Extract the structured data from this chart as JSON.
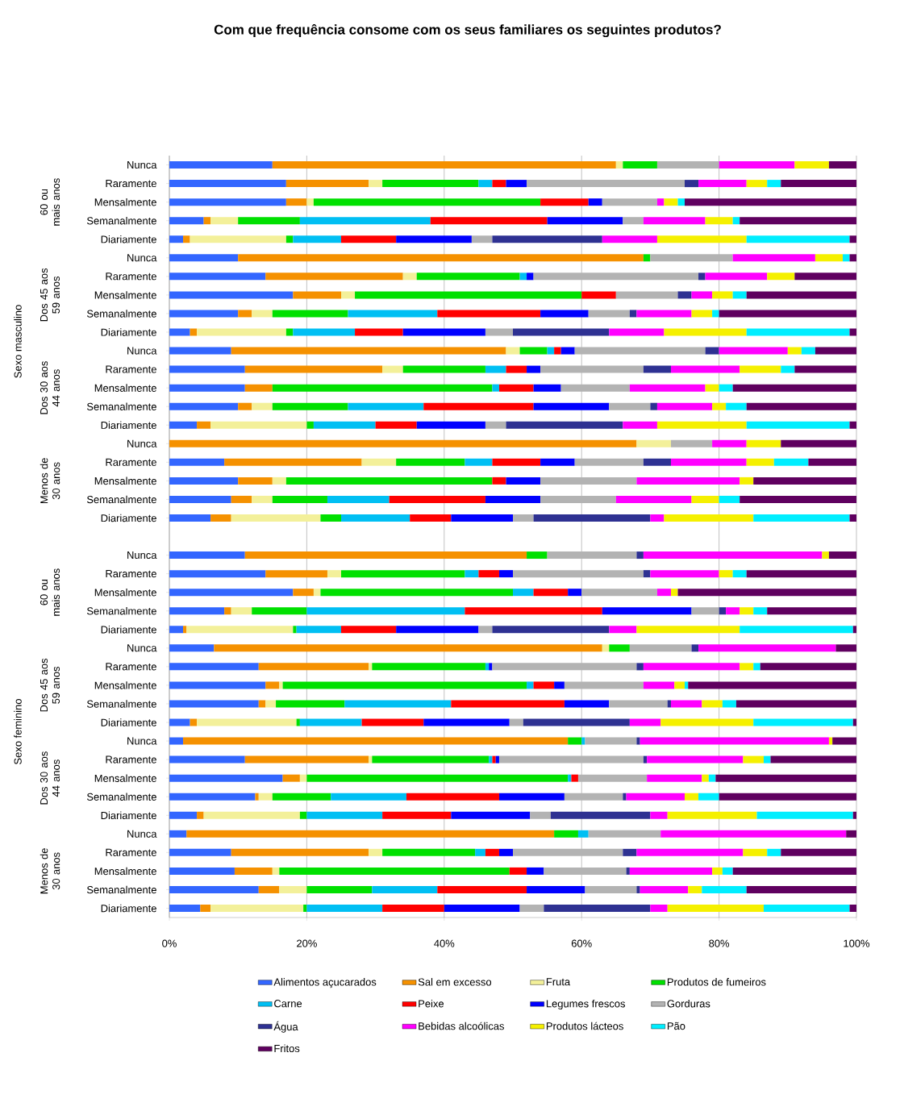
{
  "chart_data": {
    "type": "bar",
    "orientation": "horizontal",
    "stacked": true,
    "title": "Com que frequência consome com os seus familiares os seguintes produtos?",
    "categories": [
      "Nunca",
      "Raramente",
      "Mensalmente",
      "Semanalmente",
      "Diariamente",
      "Nunca",
      "Raramente",
      "Mensalmente",
      "Semanalmente",
      "Diariamente",
      "Nunca",
      "Raramente",
      "Mensalmente",
      "Semanalmente",
      "Diariamente",
      "Nunca",
      "Raramente",
      "Mensalmente",
      "Semanalmente",
      "Diariamente",
      null,
      "Nunca",
      "Raramente",
      "Mensalmente",
      "Semanalmente",
      "Diariamente",
      "Nunca",
      "Raramente",
      "Mensalmente",
      "Semanalmente",
      "Diariamente",
      "Nunca",
      "Raramente",
      "Mensalmente",
      "Semanalmente",
      "Diariamente",
      "Nunca",
      "Raramente",
      "Mensalmente",
      "Semanalmente",
      "Diariamente"
    ],
    "annotations": [
      "60 ou mais anos",
      "Dos 45 aos 59 anos",
      "Dos 30 aos 44 anos",
      "Menos de 30 anos",
      "Sexo masculino",
      "60 ou mais anos",
      "Dos 45 aos 59 anos",
      "Dos 30 aos 44 anos",
      "Menos de 30 anos",
      "Sexo feminino"
    ],
    "series": [
      {
        "name": "Alimentos açucarados",
        "color": "#3366ff",
        "values": [
          15,
          17,
          17,
          5,
          2,
          10,
          14,
          18,
          10,
          3,
          9,
          11,
          11,
          10,
          4,
          0,
          8,
          10,
          9,
          6,
          null,
          11,
          14,
          18,
          8,
          2,
          6.5,
          13,
          14,
          13,
          3,
          2,
          11,
          16.5,
          12.5,
          4,
          2.5,
          9,
          9.5,
          13,
          4.5
        ]
      },
      {
        "name": "Sal em excesso",
        "color": "#f59100",
        "values": [
          50,
          12,
          3,
          1,
          1,
          59,
          20,
          7,
          2,
          1,
          40,
          20,
          4,
          2,
          2,
          68,
          20,
          5,
          3,
          3,
          null,
          41,
          9,
          3,
          1,
          0.5,
          56.5,
          16,
          2,
          1,
          1,
          56,
          18,
          2.5,
          0.5,
          1,
          53.5,
          20,
          5.5,
          3,
          1.5
        ]
      },
      {
        "name": "Fruta",
        "color": "#f3f09a",
        "values": [
          1,
          2,
          1,
          4,
          14,
          0,
          2,
          2,
          3,
          13,
          2,
          3,
          0,
          3,
          14,
          5,
          5,
          2,
          3,
          13,
          null,
          0,
          2,
          1,
          3,
          15.5,
          1,
          0.5,
          0.5,
          1.5,
          14.5,
          0,
          0.5,
          1,
          2,
          14,
          0,
          2,
          1,
          4,
          13.5
        ]
      },
      {
        "name": "Produtos de fumeiros",
        "color": "#00e000",
        "values": [
          5,
          14,
          33,
          9,
          1,
          1,
          15,
          33,
          11,
          1,
          4,
          12,
          32,
          11,
          1,
          0,
          10,
          30,
          8,
          3,
          null,
          3,
          18,
          28,
          8,
          0.5,
          3,
          16.5,
          35.5,
          10,
          0.5,
          2,
          17,
          38,
          8.5,
          1,
          3.5,
          13.5,
          33.5,
          9.5,
          0.5
        ]
      },
      {
        "name": "Carne",
        "color": "#00bff3",
        "values": [
          0,
          2,
          0,
          19,
          7,
          0,
          1,
          0,
          13,
          9,
          1,
          3,
          1,
          11,
          9,
          0,
          4,
          0,
          9,
          10,
          null,
          0,
          2,
          3,
          23,
          6.5,
          0,
          0.5,
          1,
          15.5,
          9,
          0.5,
          0.5,
          0.5,
          11,
          11,
          1.5,
          1.5,
          0,
          9.5,
          11
        ]
      },
      {
        "name": "Peixe",
        "color": "#ff0000",
        "values": [
          0,
          2,
          7,
          17,
          8,
          0,
          0,
          5,
          15,
          7,
          1,
          3,
          5,
          16,
          6,
          0,
          7,
          2,
          14,
          6,
          null,
          0,
          3,
          5,
          20,
          8,
          0,
          0,
          3,
          16.5,
          9,
          0,
          0.5,
          1,
          13.5,
          10,
          0,
          2,
          2.5,
          13,
          9
        ]
      },
      {
        "name": "Legumes frescos",
        "color": "#0000ff",
        "values": [
          0,
          3,
          2,
          11,
          11,
          0,
          1,
          0,
          7,
          12,
          2,
          2,
          4,
          11,
          10,
          0,
          5,
          5,
          8,
          9,
          null,
          0,
          2,
          2,
          13,
          12,
          0,
          0.5,
          1.5,
          6.5,
          12.5,
          0,
          0.5,
          0,
          9.5,
          11.5,
          0,
          2,
          2.5,
          8.5,
          11
        ]
      },
      {
        "name": "Gorduras",
        "color": "#b3b3b3",
        "values": [
          9,
          23,
          8,
          3,
          3,
          12,
          24,
          9,
          6,
          4,
          19,
          15,
          10,
          6,
          3,
          6,
          10,
          14,
          11,
          3,
          null,
          13,
          19,
          11,
          4,
          2,
          9,
          21,
          11.5,
          8.5,
          2,
          7.5,
          21,
          10,
          8.5,
          3,
          10.5,
          16,
          12,
          7.5,
          3.5
        ]
      },
      {
        "name": "Água",
        "color": "#2e3192",
        "values": [
          0,
          2,
          0,
          0,
          16,
          0,
          1,
          2,
          1,
          14,
          2,
          4,
          0,
          1,
          17,
          0,
          4,
          0,
          0,
          17,
          null,
          1,
          1,
          0,
          1,
          17,
          1,
          1,
          0,
          0.5,
          15.5,
          0.5,
          0.5,
          0,
          0.5,
          14.5,
          0,
          2,
          0.5,
          0.5,
          15.5
        ]
      },
      {
        "name": "Bebidas alcoólicas",
        "color": "#ff00ff",
        "values": [
          11,
          7,
          1,
          9,
          8,
          12,
          9,
          3,
          8,
          8,
          10,
          10,
          11,
          8,
          5,
          5,
          11,
          15,
          11,
          2,
          null,
          26,
          10,
          2,
          2,
          4,
          20,
          14,
          4.5,
          4.5,
          4.5,
          27.5,
          14,
          8,
          8.5,
          2.5,
          27,
          15.5,
          12,
          7,
          2.5
        ]
      },
      {
        "name": "Produtos lácteos",
        "color": "#f5f000",
        "values": [
          5,
          3,
          2,
          4,
          13,
          4,
          4,
          3,
          3,
          12,
          2,
          6,
          2,
          2,
          13,
          5,
          4,
          2,
          4,
          13,
          null,
          1,
          2,
          1,
          2,
          15,
          0,
          2,
          1.5,
          3,
          13.5,
          0.5,
          3,
          1,
          2,
          13,
          0,
          3.5,
          1.5,
          2,
          14
        ]
      },
      {
        "name": "Pão",
        "color": "#00eeff",
        "values": [
          0,
          2,
          1,
          1,
          15,
          1,
          0,
          2,
          1,
          15,
          2,
          2,
          2,
          3,
          15,
          0,
          5,
          0,
          3,
          14,
          null,
          0,
          2,
          0,
          2,
          16.5,
          0,
          1,
          0.5,
          2,
          14.5,
          0,
          1,
          1,
          3,
          14,
          0,
          2,
          1.5,
          6.5,
          12.5
        ]
      },
      {
        "name": "Fritos",
        "color": "#5f005f",
        "values": [
          4,
          11,
          25,
          17,
          1,
          1,
          9,
          16,
          20,
          1,
          6,
          9,
          18,
          16,
          1,
          11,
          7,
          15,
          17,
          1,
          null,
          4,
          16,
          26,
          13,
          0.5,
          3,
          14,
          24.5,
          17.5,
          0.5,
          3.5,
          12.5,
          20.5,
          20,
          0.5,
          1.5,
          11,
          18,
          16,
          1
        ]
      }
    ],
    "xlim": [
      0,
      100
    ],
    "xticks": [
      {
        "value": 0,
        "label": "0%"
      },
      {
        "value": 20,
        "label": "20%"
      },
      {
        "value": 40,
        "label": "40%"
      },
      {
        "value": 60,
        "label": "60%"
      },
      {
        "value": 80,
        "label": "80%"
      },
      {
        "value": 100,
        "label": "100%"
      }
    ],
    "grid": "x",
    "legend": "bottom"
  }
}
